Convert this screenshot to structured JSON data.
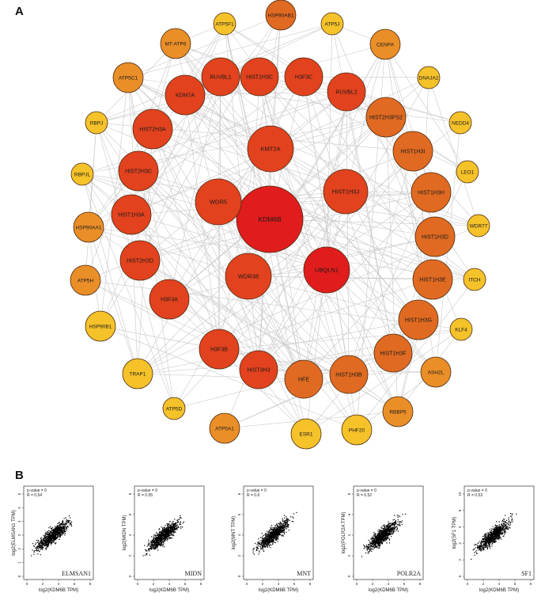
{
  "panels": {
    "a": "A",
    "b": "B"
  },
  "network": {
    "center": "KDM6B",
    "colors": {
      "high": "#e01c1c",
      "upper": "#e2421e",
      "mid": "#e06a22",
      "lower": "#ea8e28",
      "low": "#f5c22a",
      "edge": "#c9c9c9",
      "stroke": "#4a2a10"
    },
    "nodes": [
      {
        "id": "KDM6B",
        "ring": "core"
      },
      {
        "id": "WDR5",
        "ring": "inner"
      },
      {
        "id": "KMT2A",
        "ring": "inner"
      },
      {
        "id": "HIST1H3J",
        "ring": "inner"
      },
      {
        "id": "UBQLN1",
        "ring": "inner"
      },
      {
        "id": "WDR38",
        "ring": "inner"
      },
      {
        "id": "HIST1H3C",
        "ring": "middle"
      },
      {
        "id": "H3F3C",
        "ring": "middle"
      },
      {
        "id": "RUVBL2",
        "ring": "middle"
      },
      {
        "id": "HIST2H3PS2",
        "ring": "middle"
      },
      {
        "id": "HIST1H3I",
        "ring": "middle"
      },
      {
        "id": "HIST1H3H",
        "ring": "middle"
      },
      {
        "id": "HIST1H3D",
        "ring": "middle"
      },
      {
        "id": "HIST1H3E",
        "ring": "middle"
      },
      {
        "id": "HIST1H3G",
        "ring": "middle"
      },
      {
        "id": "HIST1H3F",
        "ring": "middle"
      },
      {
        "id": "HIST1H3B",
        "ring": "middle"
      },
      {
        "id": "HFE",
        "ring": "middle"
      },
      {
        "id": "HIST3H3",
        "ring": "middle"
      },
      {
        "id": "H3F3B",
        "ring": "middle"
      },
      {
        "id": "H3F3A",
        "ring": "middle"
      },
      {
        "id": "HIST2H3D",
        "ring": "middle"
      },
      {
        "id": "HIST1H3A",
        "ring": "middle"
      },
      {
        "id": "HIST2H3C",
        "ring": "middle"
      },
      {
        "id": "HIST2H3A",
        "ring": "middle"
      },
      {
        "id": "KDM7A",
        "ring": "middle"
      },
      {
        "id": "RUVBL1",
        "ring": "middle"
      },
      {
        "id": "HSP90AB1",
        "ring": "outer"
      },
      {
        "id": "ATP5J",
        "ring": "outer"
      },
      {
        "id": "CENPA",
        "ring": "outer"
      },
      {
        "id": "DNAJA2",
        "ring": "outer"
      },
      {
        "id": "NEDD4",
        "ring": "outer"
      },
      {
        "id": "LEO1",
        "ring": "outer"
      },
      {
        "id": "WDR77",
        "ring": "outer"
      },
      {
        "id": "ITCH",
        "ring": "outer"
      },
      {
        "id": "KLF4",
        "ring": "outer"
      },
      {
        "id": "ASH2L",
        "ring": "outer"
      },
      {
        "id": "RBBP5",
        "ring": "outer"
      },
      {
        "id": "PHF20",
        "ring": "outer"
      },
      {
        "id": "ESR1",
        "ring": "outer"
      },
      {
        "id": "ATP5A1",
        "ring": "outer"
      },
      {
        "id": "ATP5D",
        "ring": "outer"
      },
      {
        "id": "TRAP1",
        "ring": "outer"
      },
      {
        "id": "HSP90B1",
        "ring": "outer"
      },
      {
        "id": "ATP5H",
        "ring": "outer"
      },
      {
        "id": "HSP90AA1",
        "ring": "outer"
      },
      {
        "id": "RBPJL",
        "ring": "outer"
      },
      {
        "id": "RBPJ",
        "ring": "outer"
      },
      {
        "id": "ATP5C1",
        "ring": "outer"
      },
      {
        "id": "MT-ATP6",
        "ring": "outer"
      },
      {
        "id": "ATP5F1",
        "ring": "outer"
      }
    ]
  },
  "scatter_panels": {
    "x_label": "log2(KDM6B TPM)",
    "x_ticks": [
      "0",
      "2",
      "4",
      "6",
      "8"
    ],
    "plots": [
      {
        "gene": "ELMSAN1",
        "y_label": "log2(ELMSAN1 TPM)",
        "p_text": "p-value = 0",
        "r_text": "R = 0.54",
        "y_ticks": [
          "0",
          "1",
          "2",
          "3",
          "4",
          "5",
          "6"
        ]
      },
      {
        "gene": "MIDN",
        "y_label": "log2(MIDN TPM)",
        "p_text": "p-value = 0",
        "r_text": "R = 0.55",
        "y_ticks": [
          "0",
          "2",
          "4",
          "6",
          "8"
        ]
      },
      {
        "gene": "MNT",
        "y_label": "log2(MNT TPM)",
        "p_text": "p-value = 0",
        "r_text": "R = 0.6",
        "y_ticks": [
          "0",
          "2",
          "4",
          "6",
          "8"
        ]
      },
      {
        "gene": "POLR2A",
        "y_label": "log2(POLR2A TPM)",
        "p_text": "p-value = 0",
        "r_text": "R = 0.52",
        "y_ticks": [
          "0",
          "2",
          "4",
          "6",
          "8"
        ]
      },
      {
        "gene": "SF1",
        "y_label": "log2(SF1 TPM)",
        "p_text": "p-value = 0",
        "r_text": "R = 0.53",
        "y_ticks": [
          "0",
          "2",
          "4",
          "6",
          "8",
          "10"
        ]
      }
    ]
  }
}
